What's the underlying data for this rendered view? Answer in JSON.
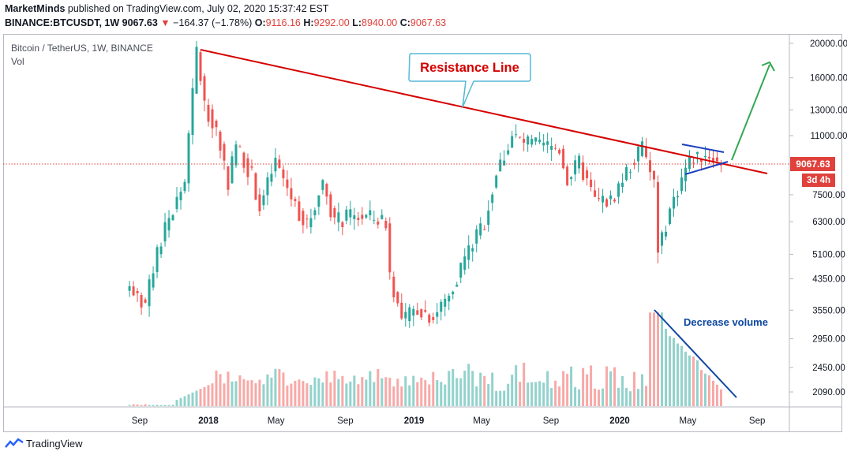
{
  "header": {
    "author": "MarketMinds",
    "published": "published on TradingView.com, July 02, 2020 15:37:42 EST",
    "symbol": "BINANCE:BTCUSDT, 1W",
    "last": "9067.63",
    "change_arrow": "▼",
    "change": "−164.37 (−1.78%)",
    "o_label": "O:",
    "o_value": "9116.16",
    "h_label": "H:",
    "h_value": "9292.00",
    "l_label": "L:",
    "l_value": "8940.00",
    "c_label": "C:",
    "c_value": "9067.63"
  },
  "legend": {
    "title": "Bitcoin / TetherUS, 1W, BINANCE",
    "vol": "Vol"
  },
  "price_badge": "9067.63",
  "time_badge": "3d 4h",
  "watermark": "TradingView",
  "colors": {
    "up": "#26a69a",
    "down": "#ef5350",
    "resistance": "#d50000",
    "annotation": "#0d47a1",
    "arrow": "#33a852",
    "callout": "#56b8d6"
  },
  "chart_data": {
    "type": "candlestick",
    "title": "Bitcoin / TetherUS, 1W, BINANCE",
    "ylim": [
      1900,
      21000
    ],
    "y_scale": "log",
    "y_ticks": [
      "20000.00",
      "16000.00",
      "13000.00",
      "11000.00",
      "7500.00",
      "6300.00",
      "5100.00",
      "4350.00",
      "3550.00",
      "2950.00",
      "2450.00",
      "2090.00"
    ],
    "x_ticks": [
      "Sep",
      "2018",
      "May",
      "Sep",
      "2019",
      "May",
      "Sep",
      "2020",
      "May",
      "Sep"
    ],
    "last_price": 9067.63,
    "close_path": [
      [
        "2017-08-14",
        4150
      ],
      [
        "2017-09-11",
        3700
      ],
      [
        "2017-10-09",
        5600
      ],
      [
        "2017-10-30",
        6800
      ],
      [
        "2017-11-20",
        8200
      ],
      [
        "2017-12-11",
        19000
      ],
      [
        "2017-12-25",
        13500
      ],
      [
        "2018-01-15",
        11500
      ],
      [
        "2018-02-05",
        8200
      ],
      [
        "2018-02-19",
        10400
      ],
      [
        "2018-03-19",
        8500
      ],
      [
        "2018-04-02",
        6900
      ],
      [
        "2018-04-30",
        9300
      ],
      [
        "2018-05-28",
        7400
      ],
      [
        "2018-06-25",
        6100
      ],
      [
        "2018-07-23",
        8200
      ],
      [
        "2018-08-13",
        6300
      ],
      [
        "2018-09-10",
        6500
      ],
      [
        "2018-10-08",
        6500
      ],
      [
        "2018-11-12",
        6300
      ],
      [
        "2018-11-19",
        4500
      ],
      [
        "2018-12-10",
        3300
      ],
      [
        "2019-01-07",
        3600
      ],
      [
        "2019-02-04",
        3400
      ],
      [
        "2019-03-04",
        3900
      ],
      [
        "2019-04-01",
        5000
      ],
      [
        "2019-05-06",
        6300
      ],
      [
        "2019-05-27",
        8600
      ],
      [
        "2019-06-24",
        11000
      ],
      [
        "2019-07-15",
        10500
      ],
      [
        "2019-08-12",
        10300
      ],
      [
        "2019-09-16",
        10100
      ],
      [
        "2019-09-30",
        8300
      ],
      [
        "2019-10-21",
        9200
      ],
      [
        "2019-11-18",
        7200
      ],
      [
        "2019-12-16",
        7200
      ],
      [
        "2020-01-13",
        8700
      ],
      [
        "2020-02-10",
        10200
      ],
      [
        "2020-03-02",
        8000
      ],
      [
        "2020-03-09",
        5300
      ],
      [
        "2020-03-30",
        6800
      ],
      [
        "2020-04-27",
        8900
      ],
      [
        "2020-05-11",
        9600
      ],
      [
        "2020-06-08",
        9700
      ],
      [
        "2020-06-29",
        9067.63
      ]
    ],
    "volume_trend": "decrease",
    "annotations": [
      "Resistance Line",
      "Decrease volume"
    ]
  }
}
